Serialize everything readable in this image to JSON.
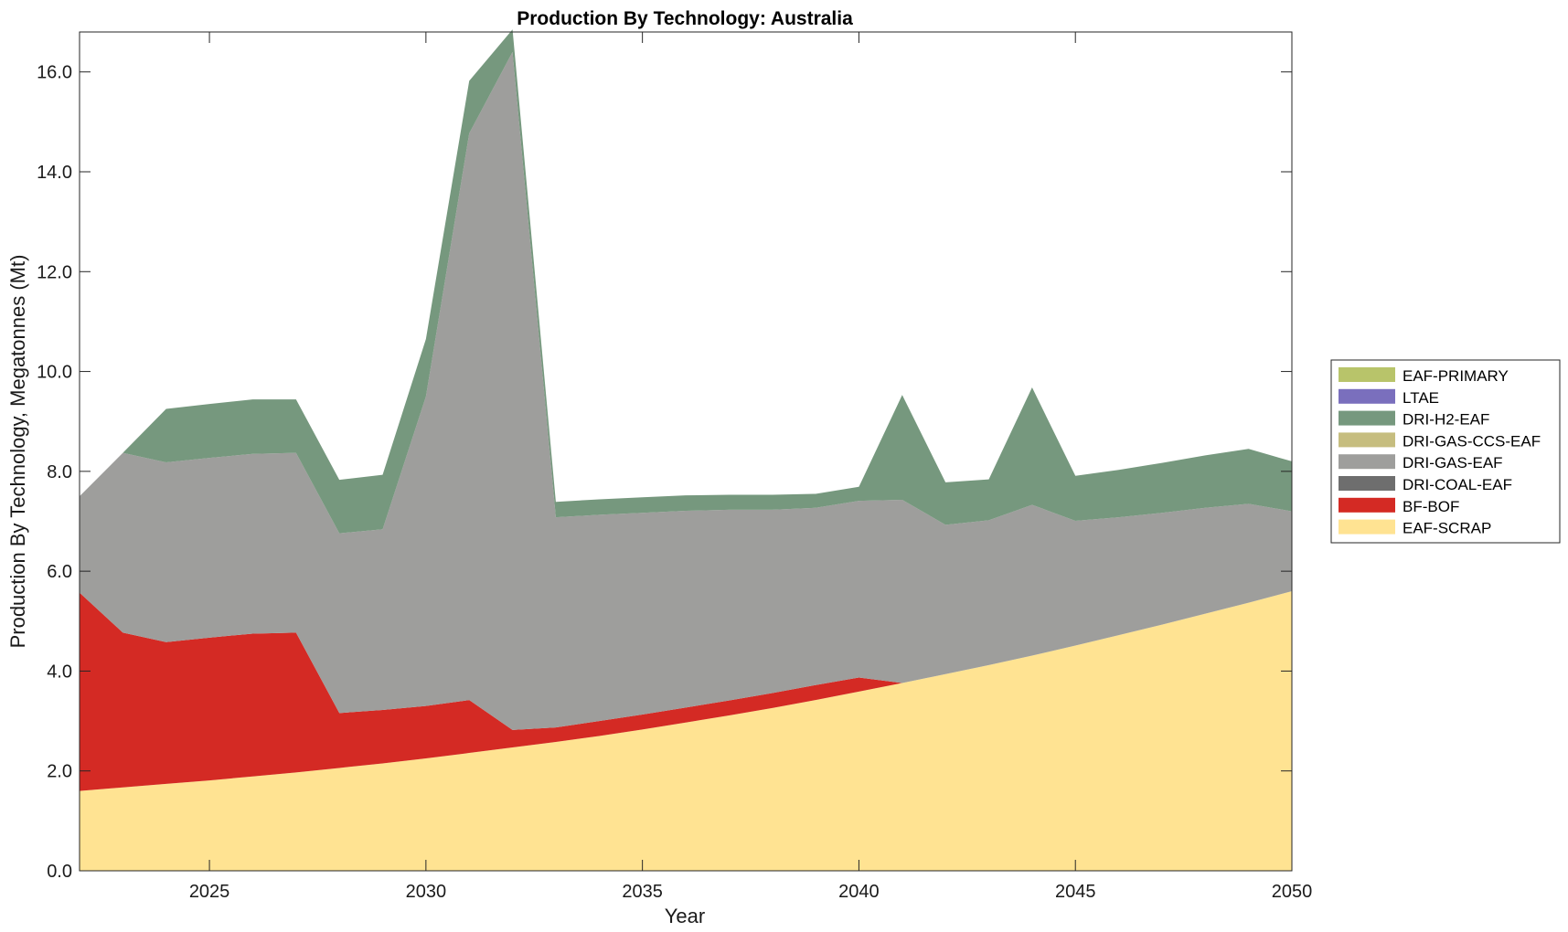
{
  "chart_data": {
    "type": "area",
    "stacked": true,
    "title": "Production By Technology: Australia",
    "xlabel": "Year",
    "ylabel": "Production By Technology, Megatonnes (Mt)",
    "xlim": [
      2022,
      2050
    ],
    "ylim": [
      0,
      16.8
    ],
    "xticks": [
      2025,
      2030,
      2035,
      2040,
      2045,
      2050
    ],
    "yticks": [
      0,
      2,
      4,
      6,
      8,
      10,
      12,
      14,
      16
    ],
    "ytick_labels": [
      "0.0",
      "2.0",
      "4.0",
      "6.0",
      "8.0",
      "10.0",
      "12.0",
      "14.0",
      "16.0"
    ],
    "grid": false,
    "legend_position": "right",
    "legend_order": [
      "EAF-PRIMARY",
      "LTAE",
      "DRI-H2-EAF",
      "DRI-GAS-CCS-EAF",
      "DRI-GAS-EAF",
      "DRI-COAL-EAF",
      "BF-BOF",
      "EAF-SCRAP"
    ],
    "x": [
      2022,
      2023,
      2024,
      2025,
      2026,
      2027,
      2028,
      2029,
      2030,
      2031,
      2032,
      2033,
      2034,
      2035,
      2036,
      2037,
      2038,
      2039,
      2040,
      2041,
      2042,
      2043,
      2044,
      2045,
      2046,
      2047,
      2048,
      2049,
      2050
    ],
    "series": [
      {
        "name": "EAF-SCRAP",
        "color": "#ffe392",
        "values": [
          1.6,
          1.67,
          1.74,
          1.81,
          1.89,
          1.97,
          2.06,
          2.15,
          2.25,
          2.36,
          2.47,
          2.58,
          2.7,
          2.83,
          2.97,
          3.11,
          3.26,
          3.42,
          3.59,
          3.76,
          3.94,
          4.12,
          4.31,
          4.51,
          4.72,
          4.93,
          5.15,
          5.37,
          5.6
        ]
      },
      {
        "name": "BF-BOF",
        "color": "#d42a24",
        "values": [
          3.97,
          3.1,
          2.84,
          2.86,
          2.86,
          2.8,
          1.1,
          1.07,
          1.05,
          1.06,
          0.35,
          0.29,
          0.3,
          0.3,
          0.3,
          0.3,
          0.3,
          0.3,
          0.28,
          0.0,
          0.0,
          0.0,
          0.0,
          0.0,
          0.0,
          0.0,
          0.0,
          0.0,
          0.0
        ]
      },
      {
        "name": "DRI-COAL-EAF",
        "color": "#6e6e6e",
        "values": [
          0,
          0,
          0,
          0,
          0,
          0,
          0,
          0,
          0,
          0,
          0,
          0,
          0,
          0,
          0,
          0,
          0,
          0,
          0,
          0,
          0,
          0,
          0,
          0,
          0,
          0,
          0,
          0,
          0
        ]
      },
      {
        "name": "DRI-GAS-EAF",
        "color": "#9e9e9c",
        "values": [
          1.93,
          3.6,
          3.6,
          3.6,
          3.6,
          3.6,
          3.6,
          3.62,
          6.2,
          11.35,
          13.58,
          4.21,
          4.13,
          4.04,
          3.94,
          3.82,
          3.67,
          3.55,
          3.54,
          3.67,
          2.99,
          2.9,
          3.02,
          2.5,
          2.36,
          2.24,
          2.12,
          1.98,
          1.6
        ]
      },
      {
        "name": "DRI-GAS-CCS-EAF",
        "color": "#c6bd7f",
        "values": [
          0,
          0,
          0,
          0,
          0,
          0,
          0,
          0,
          0,
          0,
          0,
          0,
          0,
          0,
          0,
          0,
          0,
          0,
          0,
          0,
          0,
          0,
          0,
          0,
          0,
          0,
          0,
          0,
          0
        ]
      },
      {
        "name": "DRI-H2-EAF",
        "color": "#76987e",
        "values": [
          0.0,
          0.0,
          1.07,
          1.08,
          1.09,
          1.07,
          1.07,
          1.09,
          1.15,
          1.05,
          0.45,
          0.31,
          0.31,
          0.31,
          0.31,
          0.3,
          0.3,
          0.28,
          0.28,
          2.1,
          0.85,
          0.82,
          2.35,
          0.9,
          0.95,
          1.0,
          1.05,
          1.1,
          1.0
        ]
      },
      {
        "name": "LTAE",
        "color": "#7a6fbd",
        "values": [
          0,
          0,
          0,
          0,
          0,
          0,
          0,
          0,
          0,
          0,
          0,
          0,
          0,
          0,
          0,
          0,
          0,
          0,
          0,
          0,
          0,
          0,
          0,
          0,
          0,
          0,
          0,
          0,
          0
        ]
      },
      {
        "name": "EAF-PRIMARY",
        "color": "#b8c46a",
        "values": [
          0,
          0,
          0,
          0,
          0,
          0,
          0,
          0,
          0,
          0,
          0,
          0,
          0,
          0,
          0,
          0,
          0,
          0,
          0,
          0,
          0,
          0,
          0,
          0,
          0,
          0,
          0,
          0,
          0
        ]
      }
    ]
  }
}
